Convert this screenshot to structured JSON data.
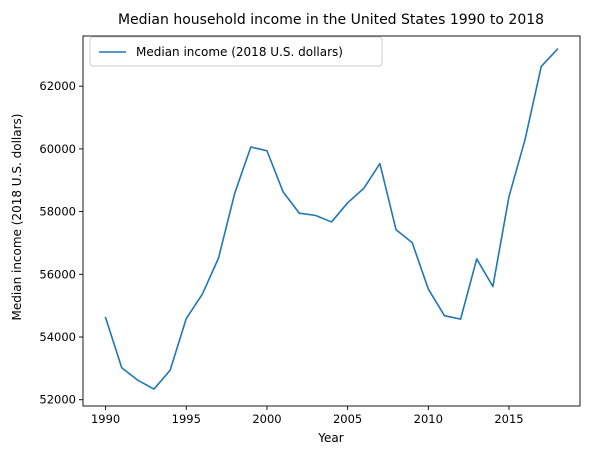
{
  "chart_data": {
    "type": "line",
    "title": "Median household income in the United States 1990 to 2018",
    "xlabel": "Year",
    "ylabel": "Median income (2018 U.S. dollars)",
    "xlim": [
      1988.6,
      2019.4
    ],
    "ylim": [
      51800,
      63600
    ],
    "xticks": [
      1990,
      1995,
      2000,
      2005,
      2010,
      2015
    ],
    "yticks": [
      52000,
      54000,
      56000,
      58000,
      60000,
      62000
    ],
    "legend_position": "upper-left",
    "grid": false,
    "series": [
      {
        "name": "Median income (2018 U.S. dollars)",
        "color": "#1f77b4",
        "x": [
          1990,
          1991,
          1992,
          1993,
          1994,
          1995,
          1996,
          1997,
          1998,
          1999,
          2000,
          2001,
          2002,
          2003,
          2004,
          2005,
          2006,
          2007,
          2008,
          2009,
          2010,
          2011,
          2012,
          2013,
          2014,
          2015,
          2016,
          2017,
          2018
        ],
        "values": [
          54620,
          53020,
          52620,
          52340,
          52940,
          54590,
          55370,
          56520,
          58580,
          60060,
          59940,
          58630,
          57950,
          57880,
          57670,
          58280,
          58740,
          59530,
          57420,
          57010,
          55530,
          54680,
          54570,
          56490,
          55610,
          58480,
          60310,
          62630,
          63180
        ]
      }
    ]
  }
}
